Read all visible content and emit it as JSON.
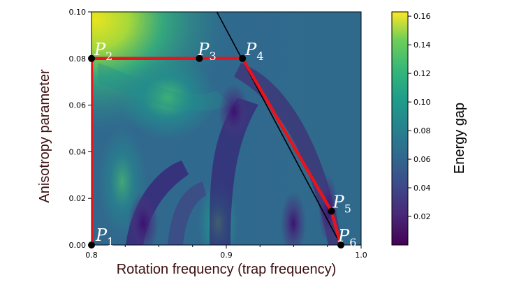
{
  "chart_data": {
    "type": "heatmap",
    "xlabel": "Rotation frequency (trap frequency)",
    "ylabel": "Anisotropy parameter",
    "xlim": [
      0.8,
      1.0
    ],
    "ylim": [
      0.0,
      0.1
    ],
    "xticks": [
      "0.8",
      "0.9",
      "1.0"
    ],
    "yticks": [
      "0.00",
      "0.02",
      "0.04",
      "0.06",
      "0.08",
      "0.10"
    ],
    "colorbar": {
      "label": "Energy gap",
      "range": [
        0.0,
        0.163
      ],
      "ticks": [
        "0.02",
        "0.04",
        "0.06",
        "0.08",
        "0.10",
        "0.12",
        "0.14",
        "0.16"
      ]
    },
    "path_points": [
      {
        "name": "P",
        "sub": "1",
        "x": 0.8,
        "y": 0.0
      },
      {
        "name": "P",
        "sub": "2",
        "x": 0.8,
        "y": 0.08
      },
      {
        "name": "P",
        "sub": "3",
        "x": 0.88,
        "y": 0.08
      },
      {
        "name": "P",
        "sub": "4",
        "x": 0.912,
        "y": 0.08
      },
      {
        "name": "P",
        "sub": "5",
        "x": 0.978,
        "y": 0.0145
      },
      {
        "name": "P",
        "sub": "6",
        "x": 0.985,
        "y": 0.0
      }
    ],
    "boundary_line": [
      {
        "x": 0.893,
        "y": 0.1
      },
      {
        "x": 0.985,
        "y": 0.0
      }
    ],
    "colors": {
      "path": "#e8141c",
      "boundary": "#000000",
      "marker": "#000000"
    }
  }
}
